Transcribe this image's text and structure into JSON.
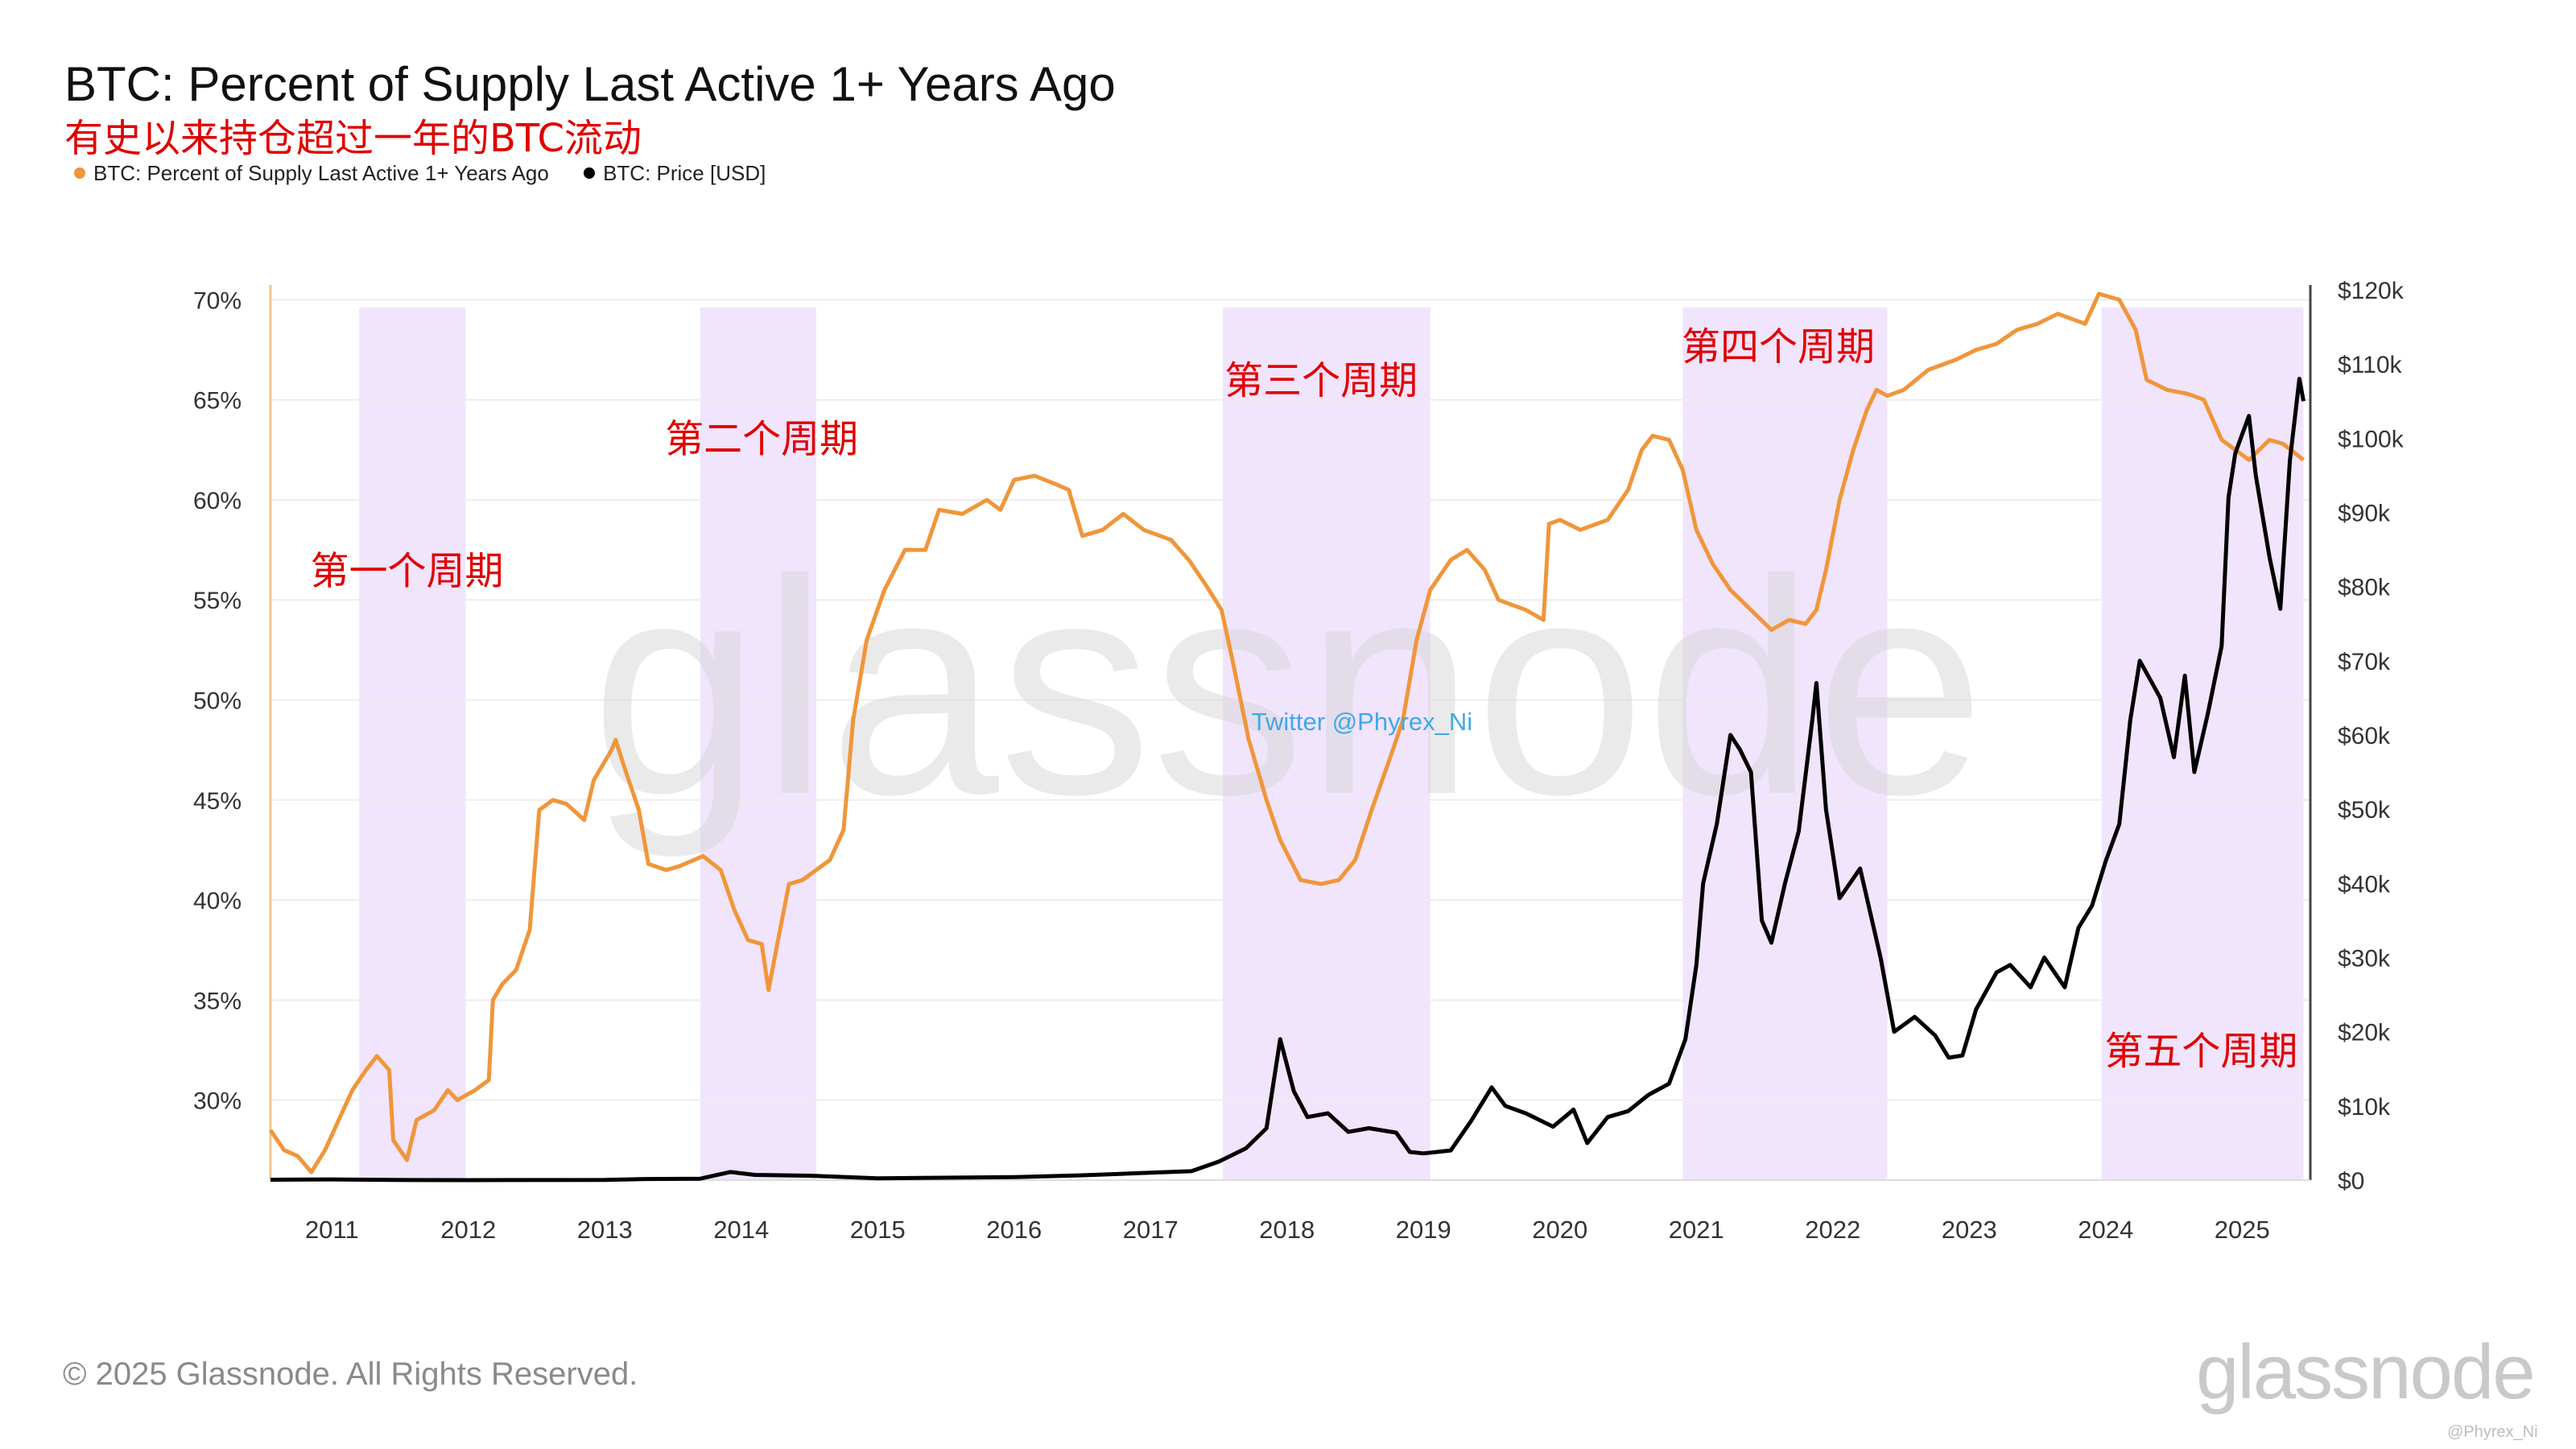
{
  "header": {
    "title": "BTC: Percent of Supply Last Active 1+ Years Ago",
    "subtitle": "有史以来持仓超过一年的BTC流动"
  },
  "footer": {
    "copyright": "© 2025 Glassnode. All Rights Reserved.",
    "brand": "glassnode",
    "credit": "@Phyrex_Ni"
  },
  "colors": {
    "supply_line": "#f0963a",
    "price_line": "#000000",
    "cycle_band": "#f1e4fd",
    "annotation": "#e00000",
    "twitter_text": "#3fa9e6",
    "grid": "#ededed",
    "watermark": "#d9d9d9"
  },
  "chart_data": {
    "type": "line",
    "title": "BTC: Percent of Supply Last Active 1+ Years Ago",
    "subtitle": "有史以来持仓超过一年的BTC流动",
    "legend_position": "top-left",
    "grid": true,
    "watermark": "glassnode",
    "x_ticks": [
      "2011",
      "2012",
      "2013",
      "2014",
      "2015",
      "2016",
      "2017",
      "2018",
      "2019",
      "2020",
      "2021",
      "2022",
      "2023",
      "2024",
      "2025"
    ],
    "xlim": [
      2010.55,
      2025.5
    ],
    "left_axis": {
      "ticks": [
        "70%",
        "65%",
        "60%",
        "55%",
        "50%",
        "45%",
        "40%",
        "35%",
        "30%"
      ],
      "ylim": [
        26,
        70.5
      ]
    },
    "right_axis": {
      "ticks": [
        "$120k",
        "$110k",
        "$100k",
        "$90k",
        "$80k",
        "$70k",
        "$60k",
        "$50k",
        "$40k",
        "$30k",
        "$20k",
        "$10k",
        "$0"
      ],
      "ylim": [
        0,
        120000
      ]
    },
    "series": [
      {
        "name": "BTC: Percent of Supply Last Active 1+ Years Ago",
        "axis": "left",
        "color": "#f0963a",
        "points": [
          [
            2010.55,
            28.5
          ],
          [
            2010.65,
            27.5
          ],
          [
            2010.75,
            27.2
          ],
          [
            2010.85,
            26.4
          ],
          [
            2010.95,
            27.5
          ],
          [
            2011.05,
            29.0
          ],
          [
            2011.15,
            30.5
          ],
          [
            2011.25,
            31.5
          ],
          [
            2011.33,
            32.2
          ],
          [
            2011.42,
            31.5
          ],
          [
            2011.45,
            28.0
          ],
          [
            2011.55,
            27.0
          ],
          [
            2011.62,
            29.0
          ],
          [
            2011.75,
            29.5
          ],
          [
            2011.85,
            30.5
          ],
          [
            2011.92,
            30.0
          ],
          [
            2012.05,
            30.5
          ],
          [
            2012.15,
            31.0
          ],
          [
            2012.18,
            35.0
          ],
          [
            2012.25,
            35.8
          ],
          [
            2012.35,
            36.5
          ],
          [
            2012.45,
            38.5
          ],
          [
            2012.52,
            44.5
          ],
          [
            2012.62,
            45.0
          ],
          [
            2012.72,
            44.8
          ],
          [
            2012.85,
            44.0
          ],
          [
            2012.92,
            46.0
          ],
          [
            2013.05,
            47.5
          ],
          [
            2013.08,
            48.0
          ],
          [
            2013.15,
            46.5
          ],
          [
            2013.25,
            44.5
          ],
          [
            2013.32,
            41.8
          ],
          [
            2013.45,
            41.5
          ],
          [
            2013.55,
            41.7
          ],
          [
            2013.72,
            42.2
          ],
          [
            2013.85,
            41.5
          ],
          [
            2013.95,
            39.5
          ],
          [
            2014.05,
            38.0
          ],
          [
            2014.15,
            37.8
          ],
          [
            2014.2,
            35.5
          ],
          [
            2014.27,
            38.0
          ],
          [
            2014.35,
            40.8
          ],
          [
            2014.45,
            41.0
          ],
          [
            2014.65,
            42.0
          ],
          [
            2014.75,
            43.5
          ],
          [
            2014.82,
            49.0
          ],
          [
            2014.92,
            53.0
          ],
          [
            2015.05,
            55.5
          ],
          [
            2015.2,
            57.5
          ],
          [
            2015.35,
            57.5
          ],
          [
            2015.45,
            59.5
          ],
          [
            2015.62,
            59.3
          ],
          [
            2015.8,
            60.0
          ],
          [
            2015.9,
            59.5
          ],
          [
            2016.0,
            61.0
          ],
          [
            2016.15,
            61.2
          ],
          [
            2016.3,
            60.8
          ],
          [
            2016.4,
            60.5
          ],
          [
            2016.5,
            58.2
          ],
          [
            2016.65,
            58.5
          ],
          [
            2016.8,
            59.3
          ],
          [
            2016.95,
            58.5
          ],
          [
            2017.15,
            58.0
          ],
          [
            2017.28,
            57.0
          ],
          [
            2017.4,
            55.8
          ],
          [
            2017.52,
            54.5
          ],
          [
            2017.6,
            52.0
          ],
          [
            2017.72,
            48.0
          ],
          [
            2017.85,
            45.0
          ],
          [
            2017.95,
            43.0
          ],
          [
            2018.1,
            41.0
          ],
          [
            2018.25,
            40.8
          ],
          [
            2018.38,
            41.0
          ],
          [
            2018.5,
            42.0
          ],
          [
            2018.62,
            44.5
          ],
          [
            2018.75,
            47.0
          ],
          [
            2018.85,
            49.0
          ],
          [
            2018.95,
            53.0
          ],
          [
            2019.05,
            55.5
          ],
          [
            2019.2,
            57.0
          ],
          [
            2019.32,
            57.5
          ],
          [
            2019.45,
            56.5
          ],
          [
            2019.55,
            55.0
          ],
          [
            2019.75,
            54.5
          ],
          [
            2019.88,
            54.0
          ],
          [
            2019.92,
            58.8
          ],
          [
            2020.0,
            59.0
          ],
          [
            2020.15,
            58.5
          ],
          [
            2020.35,
            59.0
          ],
          [
            2020.5,
            60.5
          ],
          [
            2020.6,
            62.5
          ],
          [
            2020.68,
            63.2
          ],
          [
            2020.8,
            63.0
          ],
          [
            2020.9,
            61.5
          ],
          [
            2021.0,
            58.5
          ],
          [
            2021.12,
            56.8
          ],
          [
            2021.25,
            55.5
          ],
          [
            2021.4,
            54.5
          ],
          [
            2021.55,
            53.5
          ],
          [
            2021.68,
            54.0
          ],
          [
            2021.8,
            53.8
          ],
          [
            2021.88,
            54.5
          ],
          [
            2021.95,
            56.5
          ],
          [
            2022.05,
            60.0
          ],
          [
            2022.15,
            62.5
          ],
          [
            2022.25,
            64.5
          ],
          [
            2022.32,
            65.5
          ],
          [
            2022.4,
            65.2
          ],
          [
            2022.52,
            65.5
          ],
          [
            2022.7,
            66.5
          ],
          [
            2022.9,
            67.0
          ],
          [
            2023.05,
            67.5
          ],
          [
            2023.2,
            67.8
          ],
          [
            2023.35,
            68.5
          ],
          [
            2023.5,
            68.8
          ],
          [
            2023.65,
            69.3
          ],
          [
            2023.85,
            68.8
          ],
          [
            2023.95,
            70.3
          ],
          [
            2024.1,
            70.0
          ],
          [
            2024.22,
            68.5
          ],
          [
            2024.3,
            66.0
          ],
          [
            2024.45,
            65.5
          ],
          [
            2024.6,
            65.3
          ],
          [
            2024.72,
            65.0
          ],
          [
            2024.85,
            63.0
          ],
          [
            2024.95,
            62.5
          ],
          [
            2025.05,
            62.0
          ],
          [
            2025.2,
            63.0
          ],
          [
            2025.3,
            62.8
          ],
          [
            2025.45,
            62.0
          ]
        ]
      },
      {
        "name": "BTC: Price [USD]",
        "axis": "right",
        "color": "#000000",
        "points": [
          [
            2010.55,
            50
          ],
          [
            2011.0,
            100
          ],
          [
            2011.45,
            20
          ],
          [
            2012.0,
            5
          ],
          [
            2013.0,
            20
          ],
          [
            2013.3,
            150
          ],
          [
            2013.7,
            200
          ],
          [
            2013.92,
            1100
          ],
          [
            2014.1,
            700
          ],
          [
            2014.5,
            600
          ],
          [
            2015.0,
            250
          ],
          [
            2016.0,
            400
          ],
          [
            2016.5,
            650
          ],
          [
            2017.0,
            1000
          ],
          [
            2017.3,
            1200
          ],
          [
            2017.5,
            2500
          ],
          [
            2017.7,
            4300
          ],
          [
            2017.85,
            7000
          ],
          [
            2017.95,
            19000
          ],
          [
            2018.05,
            12000
          ],
          [
            2018.15,
            8500
          ],
          [
            2018.3,
            9000
          ],
          [
            2018.45,
            6500
          ],
          [
            2018.6,
            7000
          ],
          [
            2018.8,
            6400
          ],
          [
            2018.9,
            3800
          ],
          [
            2019.0,
            3600
          ],
          [
            2019.2,
            4000
          ],
          [
            2019.35,
            8000
          ],
          [
            2019.5,
            12500
          ],
          [
            2019.6,
            10000
          ],
          [
            2019.75,
            9000
          ],
          [
            2019.95,
            7200
          ],
          [
            2020.1,
            9500
          ],
          [
            2020.2,
            5000
          ],
          [
            2020.35,
            8500
          ],
          [
            2020.5,
            9300
          ],
          [
            2020.65,
            11500
          ],
          [
            2020.8,
            13000
          ],
          [
            2020.92,
            19000
          ],
          [
            2021.0,
            29000
          ],
          [
            2021.05,
            40000
          ],
          [
            2021.15,
            48000
          ],
          [
            2021.25,
            60000
          ],
          [
            2021.32,
            58000
          ],
          [
            2021.4,
            55000
          ],
          [
            2021.48,
            35000
          ],
          [
            2021.55,
            32000
          ],
          [
            2021.65,
            40000
          ],
          [
            2021.75,
            47000
          ],
          [
            2021.85,
            62000
          ],
          [
            2021.88,
            67000
          ],
          [
            2021.95,
            50000
          ],
          [
            2022.05,
            38000
          ],
          [
            2022.2,
            42000
          ],
          [
            2022.35,
            30000
          ],
          [
            2022.45,
            20000
          ],
          [
            2022.6,
            22000
          ],
          [
            2022.75,
            19500
          ],
          [
            2022.85,
            16500
          ],
          [
            2022.95,
            16800
          ],
          [
            2023.05,
            23000
          ],
          [
            2023.2,
            28000
          ],
          [
            2023.3,
            29000
          ],
          [
            2023.45,
            26000
          ],
          [
            2023.55,
            30000
          ],
          [
            2023.7,
            26000
          ],
          [
            2023.8,
            34000
          ],
          [
            2023.9,
            37000
          ],
          [
            2024.0,
            43000
          ],
          [
            2024.1,
            48000
          ],
          [
            2024.18,
            62000
          ],
          [
            2024.25,
            70000
          ],
          [
            2024.4,
            65000
          ],
          [
            2024.5,
            57000
          ],
          [
            2024.58,
            68000
          ],
          [
            2024.65,
            55000
          ],
          [
            2024.75,
            63000
          ],
          [
            2024.85,
            72000
          ],
          [
            2024.9,
            92000
          ],
          [
            2024.95,
            98000
          ],
          [
            2025.05,
            103000
          ],
          [
            2025.1,
            95000
          ],
          [
            2025.2,
            84000
          ],
          [
            2025.28,
            77000
          ],
          [
            2025.35,
            97000
          ],
          [
            2025.42,
            108000
          ],
          [
            2025.45,
            105000
          ]
        ]
      }
    ],
    "bands": [
      [
        2011.2,
        2011.98
      ],
      [
        2013.7,
        2014.55
      ],
      [
        2017.53,
        2019.05
      ],
      [
        2020.9,
        2022.4
      ],
      [
        2023.97,
        2025.45
      ]
    ],
    "annotations": [
      {
        "text": "第一个周期",
        "x": 2011.55,
        "y": 55.8
      },
      {
        "text": "第二个周期",
        "x": 2014.15,
        "y": 62.4
      },
      {
        "text": "第三个周期",
        "x": 2018.25,
        "y": 65.3
      },
      {
        "text": "第四个周期",
        "x": 2021.6,
        "y": 67.0
      },
      {
        "text": "第五个周期",
        "x": 2024.7,
        "y": 31.8
      }
    ],
    "twitter": {
      "text": "Twitter @Phyrex_Ni",
      "x": 2018.55,
      "y": 48.5
    }
  }
}
